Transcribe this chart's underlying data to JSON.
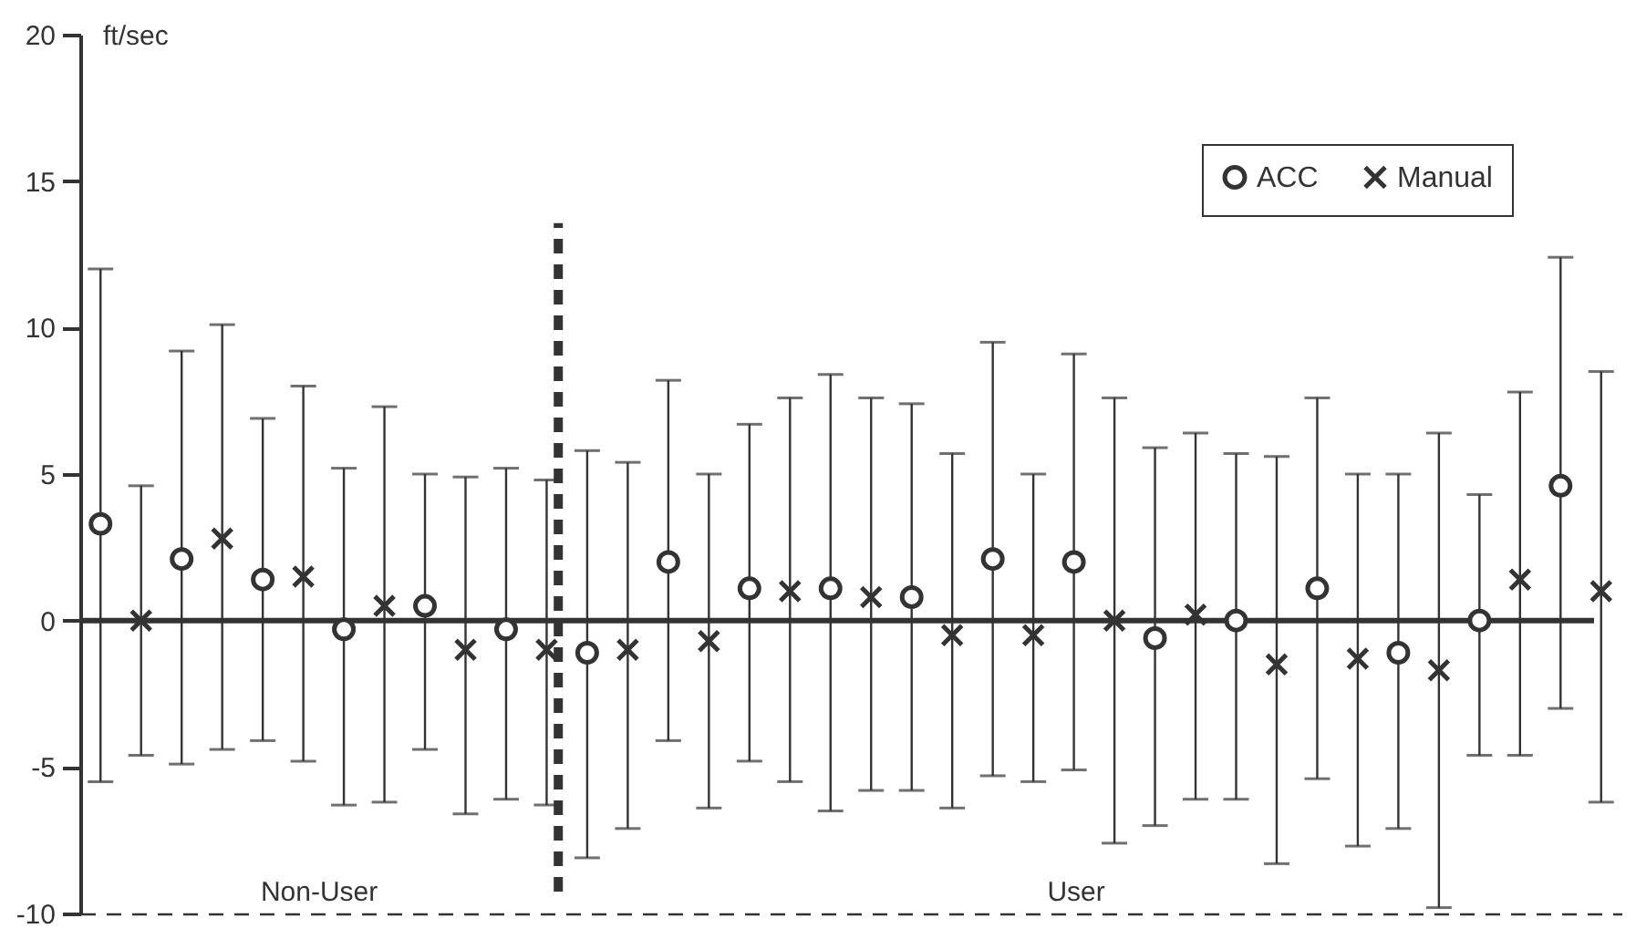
{
  "chart_data": {
    "type": "scatter",
    "ylabel": "ft/sec",
    "categories": [
      null,
      null,
      null,
      null,
      null,
      null,
      null,
      null,
      null,
      null,
      null,
      null,
      null,
      null,
      null,
      null,
      null,
      null,
      null,
      null,
      null,
      null,
      null,
      null,
      null,
      null,
      null,
      null,
      null,
      null,
      null,
      null,
      null,
      null,
      null,
      null,
      null,
      null
    ],
    "ylim": [
      -10,
      20
    ],
    "yticks": [
      -10,
      -5,
      0,
      5,
      10,
      15,
      20
    ],
    "tick_labels": "y",
    "grid": false,
    "legend": "top right",
    "series": [
      {
        "name": "ACC",
        "color": "#333333",
        "marker": "circle",
        "values": [
          3.3,
          null,
          2.1,
          null,
          1.4,
          null,
          -0.3,
          null,
          0.5,
          null,
          -0.3,
          null,
          -1.1,
          null,
          2.0,
          null,
          1.1,
          null,
          1.1,
          null,
          0.8,
          null,
          2.1,
          null,
          2.0,
          null,
          -0.6,
          null,
          0.0,
          null,
          1.1,
          null,
          -1.1,
          null,
          0.0,
          null,
          4.6,
          null
        ],
        "errors": [
          [
            -5.5,
            12.0
          ],
          null,
          [
            -4.9,
            9.2
          ],
          null,
          [
            -4.1,
            6.9
          ],
          null,
          [
            -6.3,
            5.2
          ],
          null,
          [
            -4.4,
            5.0
          ],
          null,
          [
            -6.1,
            5.2
          ],
          null,
          [
            -8.1,
            5.8
          ],
          null,
          [
            -4.1,
            8.2
          ],
          null,
          [
            -4.8,
            6.7
          ],
          null,
          [
            -6.5,
            8.4
          ],
          null,
          [
            -5.8,
            7.4
          ],
          null,
          [
            -5.3,
            9.5
          ],
          null,
          [
            -5.1,
            9.1
          ],
          null,
          [
            -7.0,
            5.9
          ],
          null,
          [
            -6.1,
            5.7
          ],
          null,
          [
            -5.4,
            7.6
          ],
          null,
          [
            -7.1,
            5.0
          ],
          null,
          [
            -4.6,
            4.3
          ],
          null,
          [
            -3.0,
            12.4
          ],
          null
        ]
      },
      {
        "name": "Manual",
        "color": "#333333",
        "marker": "cross",
        "values": [
          null,
          0.0,
          null,
          2.8,
          null,
          1.5,
          null,
          0.5,
          null,
          -1.0,
          null,
          -1.0,
          null,
          -1.0,
          null,
          -0.7,
          null,
          1.0,
          null,
          0.8,
          null,
          -0.5,
          null,
          -0.5,
          null,
          0.0,
          null,
          0.2,
          null,
          -1.5,
          null,
          -1.3,
          null,
          -1.7,
          null,
          1.4,
          null,
          1.0
        ],
        "errors": [
          null,
          [
            -4.6,
            4.6
          ],
          null,
          [
            -4.4,
            10.1
          ],
          null,
          [
            -4.8,
            8.0
          ],
          null,
          [
            -6.2,
            7.3
          ],
          null,
          [
            -6.6,
            4.9
          ],
          null,
          [
            -6.3,
            4.8
          ],
          null,
          [
            -7.1,
            5.4
          ],
          null,
          [
            -6.4,
            5.0
          ],
          null,
          [
            -5.5,
            7.6
          ],
          null,
          [
            -5.8,
            7.6
          ],
          null,
          [
            -6.4,
            5.7
          ],
          null,
          [
            -5.5,
            5.0
          ],
          null,
          [
            -7.6,
            7.6
          ],
          null,
          [
            -6.1,
            6.4
          ],
          null,
          [
            -8.3,
            5.6
          ],
          null,
          [
            -7.7,
            5.0
          ],
          null,
          [
            -9.8,
            6.4
          ],
          null,
          [
            -4.6,
            7.8
          ],
          null,
          [
            -6.2,
            8.5
          ]
        ]
      }
    ],
    "ref_lines": [
      {
        "axis": "y",
        "value": 0,
        "color": "#333333",
        "line_style": "solid"
      }
    ],
    "annotations": [
      "Non-User",
      "User"
    ]
  }
}
